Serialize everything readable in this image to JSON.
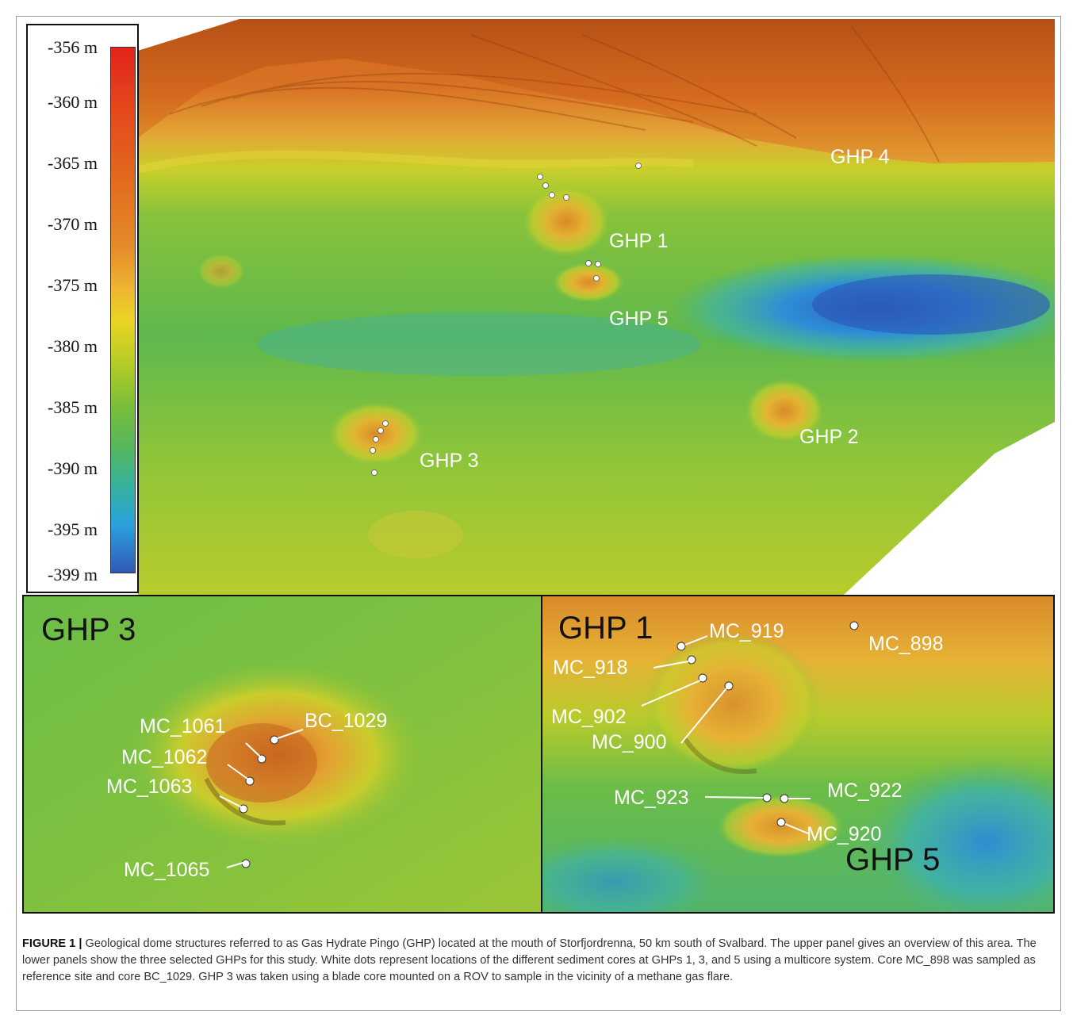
{
  "legend": {
    "ticks": [
      "-356 m",
      "-360 m",
      "-365 m",
      "-370 m",
      "-375 m",
      "-380 m",
      "-385 m",
      "-390 m",
      "-395 m",
      "-399 m"
    ]
  },
  "map_labels": {
    "ghp4": "GHP 4",
    "ghp1": "GHP 1",
    "ghp5": "GHP 5",
    "ghp2": "GHP 2",
    "ghp3": "GHP 3"
  },
  "panel_left": {
    "title": "GHP 3",
    "cores": {
      "mc1061": "MC_1061",
      "bc1029": "BC_1029",
      "mc1062": "MC_1062",
      "mc1063": "MC_1063",
      "mc1065": "MC_1065"
    }
  },
  "panel_right": {
    "title1": "GHP 1",
    "title5": "GHP 5",
    "cores": {
      "mc919": "MC_919",
      "mc898": "MC_898",
      "mc918": "MC_918",
      "mc902": "MC_902",
      "mc900": "MC_900",
      "mc923": "MC_923",
      "mc922": "MC_922",
      "mc920": "MC_920"
    }
  },
  "caption": {
    "label": "FIGURE 1 |",
    "text": "Geological dome structures referred to as Gas Hydrate Pingo (GHP) located at the mouth of Storfjordrenna, 50 km south of Svalbard. The upper panel gives an overview of this area. The lower panels show the three selected GHPs for this study. White dots represent locations of the different sediment cores at GHPs 1, 3, and 5 using a multicore system. Core MC_898 was sampled as reference site and core BC_1029. GHP 3 was taken using a blade core mounted on a ROV to sample in the vicinity of a methane gas flare."
  }
}
